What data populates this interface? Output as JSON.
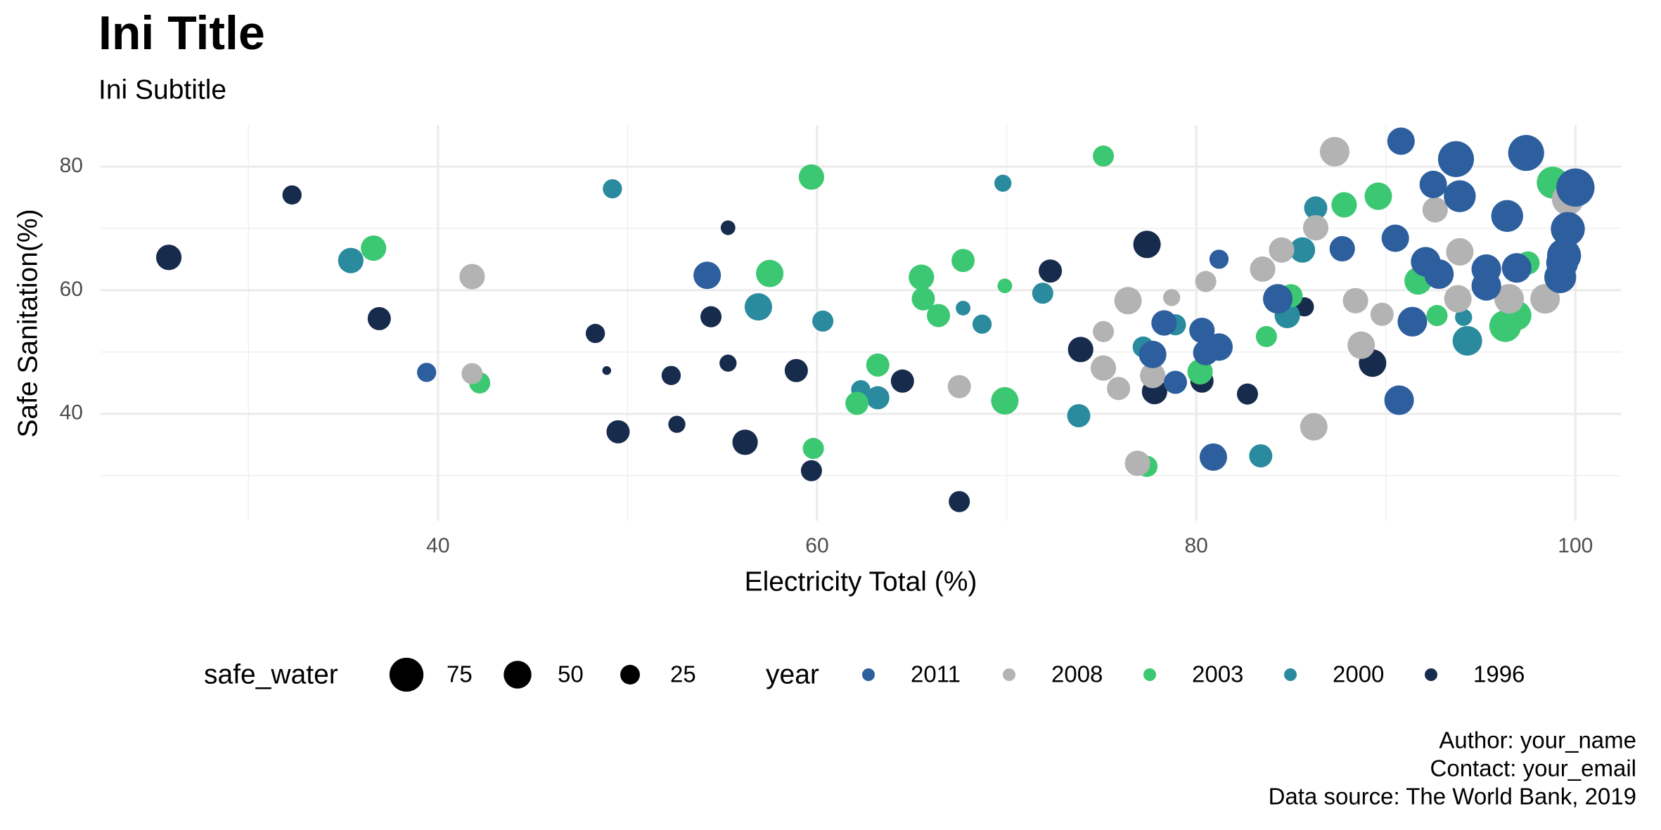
{
  "chart_data": {
    "type": "scatter",
    "title": "Ini Title",
    "subtitle": "Ini Subtitle",
    "x_label": "Electricity Total (%)",
    "y_label": "Safe Sanitation(%)",
    "caption": [
      "Author: your_name",
      "Contact: your_email",
      "Data source: The World Bank, 2019"
    ],
    "xlim": [
      22.2,
      102.4
    ],
    "ylim": [
      22.7,
      86.7
    ],
    "xticks": [
      40,
      60,
      80,
      100
    ],
    "yticks": [
      40,
      60,
      80
    ],
    "x_minor_grid": [
      30,
      50,
      70,
      90
    ],
    "y_minor_grid": [
      30,
      50,
      70
    ],
    "grid": true,
    "legend": "bottom",
    "size_legend": {
      "title": "safe_water",
      "values": [
        75,
        50,
        25
      ]
    },
    "color_legend_title": "year",
    "series": [
      {
        "name": "2011",
        "color": "#2d5f9e",
        "x": [
          39.4,
          54.2,
          77.7,
          78.3,
          78.9,
          80.3,
          80.5,
          80.9,
          81.2,
          81.2,
          84.3,
          87.7,
          90.5,
          90.7,
          90.8,
          91.4,
          92.1,
          92.5,
          92.8,
          93.7,
          93.9,
          95.3,
          95.3,
          96.4,
          96.9,
          97.4,
          99.2,
          99.4,
          99.6,
          100.0,
          99.3
        ],
        "values": [
          46.7,
          62.4,
          49.6,
          54.7,
          45.1,
          53.5,
          49.9,
          33.0,
          50.8,
          65.0,
          58.6,
          66.7,
          68.4,
          42.2,
          84.1,
          54.9,
          64.6,
          77.1,
          62.6,
          81.2,
          75.2,
          63.4,
          60.7,
          72.0,
          63.6,
          82.2,
          62.1,
          65.6,
          69.9,
          76.6,
          64.4
        ],
        "sizes": [
          24,
          49,
          49,
          42,
          35,
          42,
          42,
          49,
          49,
          24,
          57,
          42,
          49,
          57,
          49,
          57,
          57,
          49,
          57,
          84,
          66,
          57,
          57,
          66,
          57,
          84,
          66,
          75,
          75,
          95,
          66
        ]
      },
      {
        "name": "2008",
        "color": "#b3b3b3",
        "x": [
          41.8,
          41.8,
          67.5,
          75.1,
          75.1,
          75.9,
          76.4,
          76.9,
          77.7,
          78.7,
          80.5,
          83.5,
          84.5,
          86.2,
          86.3,
          87.3,
          88.4,
          88.7,
          89.8,
          92.6,
          93.9,
          93.8,
          96.5,
          98.4,
          99.6
        ],
        "values": [
          62.2,
          46.5,
          44.4,
          53.3,
          47.4,
          44.1,
          58.3,
          32.0,
          46.2,
          58.8,
          61.4,
          63.4,
          66.5,
          37.9,
          70.1,
          82.4,
          58.3,
          51.1,
          56.1,
          73.0,
          66.2,
          58.6,
          58.6,
          58.6,
          74.7
        ],
        "sizes": [
          42,
          29,
          35,
          29,
          42,
          35,
          49,
          42,
          42,
          19,
          29,
          42,
          42,
          49,
          42,
          57,
          42,
          49,
          35,
          42,
          49,
          49,
          57,
          57,
          66
        ]
      },
      {
        "name": "2003",
        "color": "#3cc872",
        "x": [
          36.6,
          42.2,
          57.5,
          59.7,
          59.8,
          62.1,
          63.2,
          65.5,
          65.6,
          66.4,
          67.7,
          69.9,
          69.9,
          75.1,
          77.4,
          80.2,
          83.7,
          85.0,
          87.8,
          89.6,
          91.7,
          92.7,
          96.3,
          96.9,
          97.5,
          98.8
        ],
        "values": [
          66.8,
          45.0,
          62.7,
          78.3,
          34.4,
          41.7,
          47.9,
          62.1,
          58.6,
          55.9,
          64.8,
          60.7,
          42.1,
          81.7,
          31.5,
          46.8,
          52.5,
          59.1,
          73.8,
          75.2,
          61.5,
          55.9,
          54.2,
          55.9,
          64.4,
          77.4
        ],
        "sizes": [
          42,
          29,
          49,
          42,
          29,
          35,
          35,
          42,
          35,
          35,
          35,
          14,
          49,
          29,
          29,
          42,
          29,
          35,
          42,
          49,
          49,
          29,
          66,
          57,
          35,
          66
        ]
      },
      {
        "name": "2000",
        "color": "#2a8a9e",
        "x": [
          35.4,
          49.2,
          56.9,
          60.3,
          62.3,
          63.2,
          67.7,
          68.7,
          69.8,
          71.9,
          73.8,
          77.2,
          78.9,
          83.4,
          84.8,
          85.6,
          86.3,
          94.1,
          94.3
        ],
        "values": [
          64.8,
          76.4,
          57.3,
          55.0,
          43.9,
          42.6,
          57.1,
          54.5,
          77.3,
          59.5,
          39.7,
          50.8,
          54.4,
          33.2,
          55.9,
          66.5,
          73.3,
          55.6,
          51.8
        ],
        "sizes": [
          42,
          24,
          49,
          29,
          24,
          35,
          14,
          24,
          19,
          29,
          35,
          29,
          29,
          35,
          42,
          42,
          35,
          19,
          57
        ]
      },
      {
        "name": "1996",
        "color": "#172b4d",
        "x": [
          25.8,
          32.3,
          36.9,
          48.3,
          48.9,
          49.5,
          52.3,
          52.6,
          54.4,
          55.3,
          55.3,
          56.2,
          58.9,
          59.7,
          64.5,
          67.5,
          72.3,
          73.9,
          77.4,
          77.8,
          80.3,
          82.7,
          85.7,
          89.3
        ],
        "values": [
          65.3,
          75.4,
          55.4,
          53.0,
          47.0,
          37.1,
          46.2,
          38.3,
          55.7,
          70.1,
          48.2,
          35.4,
          47.0,
          30.8,
          45.3,
          25.8,
          63.1,
          50.4,
          67.4,
          43.6,
          45.3,
          43.2,
          57.3,
          48.2
        ],
        "sizes": [
          42,
          24,
          35,
          24,
          5,
          35,
          24,
          19,
          29,
          14,
          19,
          42,
          35,
          29,
          35,
          29,
          35,
          42,
          49,
          42,
          35,
          29,
          24,
          49
        ]
      }
    ]
  }
}
